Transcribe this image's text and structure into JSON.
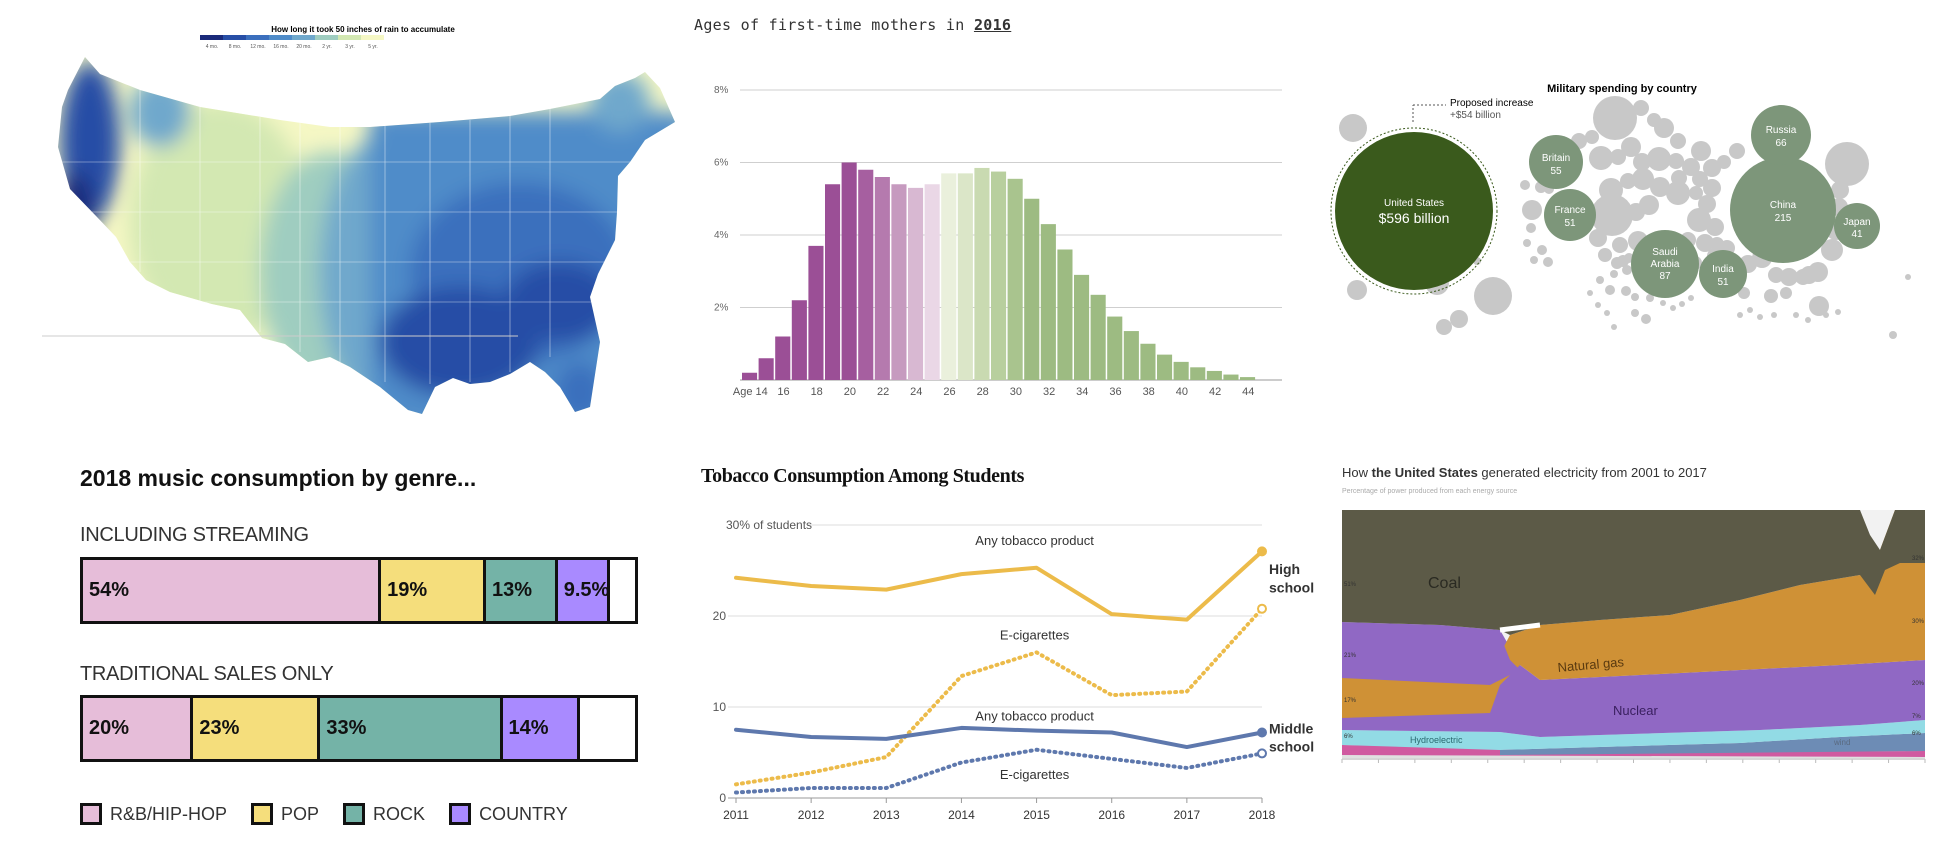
{
  "colors": {
    "rain_scale": [
      "#1a2a7a",
      "#274ea6",
      "#3b6fbd",
      "#4f8cc9",
      "#6fa8cc",
      "#9fcdc0",
      "#d3e8b2",
      "#f5f7c4"
    ],
    "mothers_purple": "#9b4f96",
    "mothers_green": "#9dbb82",
    "military_us": "#3a5a1c",
    "military_named": "#7d967a",
    "military_other": "#c8c8c8",
    "music_rnb": "#e6bdd9",
    "music_pop": "#f5de7c",
    "music_rock": "#74b3a7",
    "music_country": "#a98aff",
    "tobacco_high": "#ecbb4a",
    "tobacco_middle": "#5e78ad",
    "elec_coal": "#5c5a47",
    "elec_gas": "#cf9136",
    "elec_nuclear": "#9068c4",
    "elec_hydro": "#92dbe5",
    "elec_wind": "#6d8cb5",
    "elec_other": "#d05aa0"
  },
  "rain_map": {
    "title": "How long it took 50 inches of rain to accumulate",
    "legend_ticks": [
      "4 mo.",
      "8 mo.",
      "12 mo.",
      "16 mo.",
      "20 mo.",
      "2 yr.",
      "3 yr.",
      "5 yr."
    ],
    "chart_data": {
      "type": "heatmap",
      "title": "How long it took 50 inches of rain to accumulate",
      "legend_categories": [
        "4 mo.",
        "8 mo.",
        "12 mo.",
        "16 mo.",
        "20 mo.",
        "2 yr.",
        "3 yr.",
        "5 yr."
      ]
    }
  },
  "mothers": {
    "title_prefix": "Ages of first-time mothers in ",
    "title_year": "2016",
    "chart_data": {
      "type": "bar",
      "title": "Ages of first-time mothers in 2016",
      "x": [
        14,
        15,
        16,
        17,
        18,
        19,
        20,
        21,
        22,
        23,
        24,
        25,
        26,
        27,
        28,
        29,
        30,
        31,
        32,
        33,
        34,
        35,
        36,
        37,
        38,
        39,
        40,
        41,
        42,
        43,
        44
      ],
      "values": [
        0.2,
        0.6,
        1.2,
        2.2,
        3.7,
        5.4,
        6.0,
        5.8,
        5.6,
        5.4,
        5.3,
        5.4,
        5.7,
        5.7,
        5.85,
        5.75,
        5.55,
        5.0,
        4.3,
        3.6,
        2.9,
        2.35,
        1.75,
        1.35,
        1.0,
        0.7,
        0.5,
        0.35,
        0.25,
        0.15,
        0.08
      ],
      "ylim": [
        0,
        8
      ],
      "yticks": [
        "2%",
        "4%",
        "6%",
        "8%"
      ],
      "xtick_labels": [
        "Age 14",
        "16",
        "18",
        "20",
        "22",
        "24",
        "26",
        "28",
        "30",
        "32",
        "34",
        "36",
        "38",
        "40",
        "42",
        "44"
      ]
    }
  },
  "military": {
    "title": "Military spending by country",
    "annotation_line1": "Proposed increase",
    "annotation_line2": "+$54 billion",
    "chart_data": {
      "type": "bubble",
      "title": "Military spending by country",
      "unit": "$ billion",
      "series": [
        {
          "name": "United States",
          "value": 596,
          "label": "$596 billion"
        },
        {
          "name": "China",
          "value": 215
        },
        {
          "name": "Saudi Arabia",
          "value": 87
        },
        {
          "name": "Russia",
          "value": 66
        },
        {
          "name": "Britain",
          "value": 55
        },
        {
          "name": "France",
          "value": 51
        },
        {
          "name": "India",
          "value": 51
        },
        {
          "name": "Japan",
          "value": 41
        }
      ],
      "annotation": "Proposed increase +$54 billion"
    },
    "labels": {
      "us": [
        "United States",
        "$596 billion"
      ],
      "china": [
        "China",
        "215"
      ],
      "saudi": [
        "Saudi",
        "Arabia",
        "87"
      ],
      "russia": [
        "Russia",
        "66"
      ],
      "britain": [
        "Britain",
        "55"
      ],
      "france": [
        "France",
        "51"
      ],
      "india": [
        "India",
        "51"
      ],
      "japan": [
        "Japan",
        "41"
      ]
    }
  },
  "music": {
    "title": "2018 music consumption by genre...",
    "row1_label": "INCLUDING STREAMING",
    "row2_label": "TRADITIONAL SALES ONLY",
    "chart_data": {
      "type": "bar",
      "orientation": "horizontal-stacked",
      "title": "2018 music consumption by genre...",
      "categories": [
        "INCLUDING STREAMING",
        "TRADITIONAL SALES ONLY"
      ],
      "series": [
        {
          "name": "R&B/HIP-HOP",
          "values": [
            54,
            20
          ],
          "labels": [
            "54%",
            "20%"
          ]
        },
        {
          "name": "POP",
          "values": [
            19,
            23
          ],
          "labels": [
            "19%",
            "23%"
          ]
        },
        {
          "name": "ROCK",
          "values": [
            13,
            33
          ],
          "labels": [
            "13%",
            "33%"
          ]
        },
        {
          "name": "COUNTRY",
          "values": [
            9.5,
            14
          ],
          "labels": [
            "9.5%",
            "14%"
          ]
        }
      ]
    },
    "legend": [
      "R&B/HIP-HOP",
      "POP",
      "ROCK",
      "COUNTRY"
    ]
  },
  "tobacco": {
    "title": "Tobacco Consumption Among Students",
    "y_unit_label": "30% of students",
    "labels": {
      "any_high": "Any tobacco product",
      "ecig_high": "E-cigarettes",
      "any_middle": "Any tobacco product",
      "ecig_middle": "E-cigarettes",
      "high_1": "High",
      "high_2": "school",
      "middle_1": "Middle",
      "middle_2": "school"
    },
    "chart_data": {
      "type": "line",
      "title": "Tobacco Consumption Among Students",
      "x": [
        "2011",
        "2012",
        "2013",
        "2014",
        "2015",
        "2016",
        "2017",
        "2018"
      ],
      "ylim": [
        0,
        30
      ],
      "yticks": [
        "0",
        "10",
        "20",
        "30% of students"
      ],
      "series": [
        {
          "name": "Any tobacco product",
          "group": "High school",
          "values": [
            24.2,
            23.3,
            22.9,
            24.6,
            25.3,
            20.2,
            19.6,
            27.1
          ]
        },
        {
          "name": "E-cigarettes",
          "group": "High school",
          "values": [
            1.5,
            2.8,
            4.5,
            13.4,
            16.0,
            11.3,
            11.7,
            20.8
          ]
        },
        {
          "name": "Any tobacco product",
          "group": "Middle school",
          "values": [
            7.5,
            6.7,
            6.5,
            7.7,
            7.4,
            7.2,
            5.6,
            7.2
          ]
        },
        {
          "name": "E-cigarettes",
          "group": "Middle school",
          "values": [
            0.6,
            1.1,
            1.1,
            3.9,
            5.3,
            4.3,
            3.3,
            4.9
          ]
        }
      ]
    }
  },
  "electricity": {
    "title_pre": "How ",
    "title_bold": "the United States",
    "title_post": " generated electricity from 2001 to 2017",
    "subtitle": "Percentage of power produced from each energy source",
    "labels": {
      "coal": "Coal",
      "gas": "Natural gas",
      "nuclear": "Nuclear",
      "hydro": "Hydroelectric",
      "wind": "wind"
    },
    "left_pct": [
      "51%",
      "21%",
      "17%",
      "6%"
    ],
    "right_pct": [
      "32%",
      "30%",
      "20%",
      "7%",
      "6%"
    ],
    "chart_data": {
      "type": "area",
      "title": "How the United States generated electricity from 2001 to 2017",
      "subtitle": "Percentage of power produced from each energy source",
      "x": [
        "2001",
        "2017"
      ],
      "series": [
        {
          "name": "Coal",
          "start": 51,
          "end": 30
        },
        {
          "name": "Natural gas",
          "start": 17,
          "end": 32
        },
        {
          "name": "Nuclear",
          "start": 21,
          "end": 20
        },
        {
          "name": "Hydroelectric",
          "start": 6,
          "end": 7
        },
        {
          "name": "wind",
          "end": 6
        }
      ]
    }
  }
}
